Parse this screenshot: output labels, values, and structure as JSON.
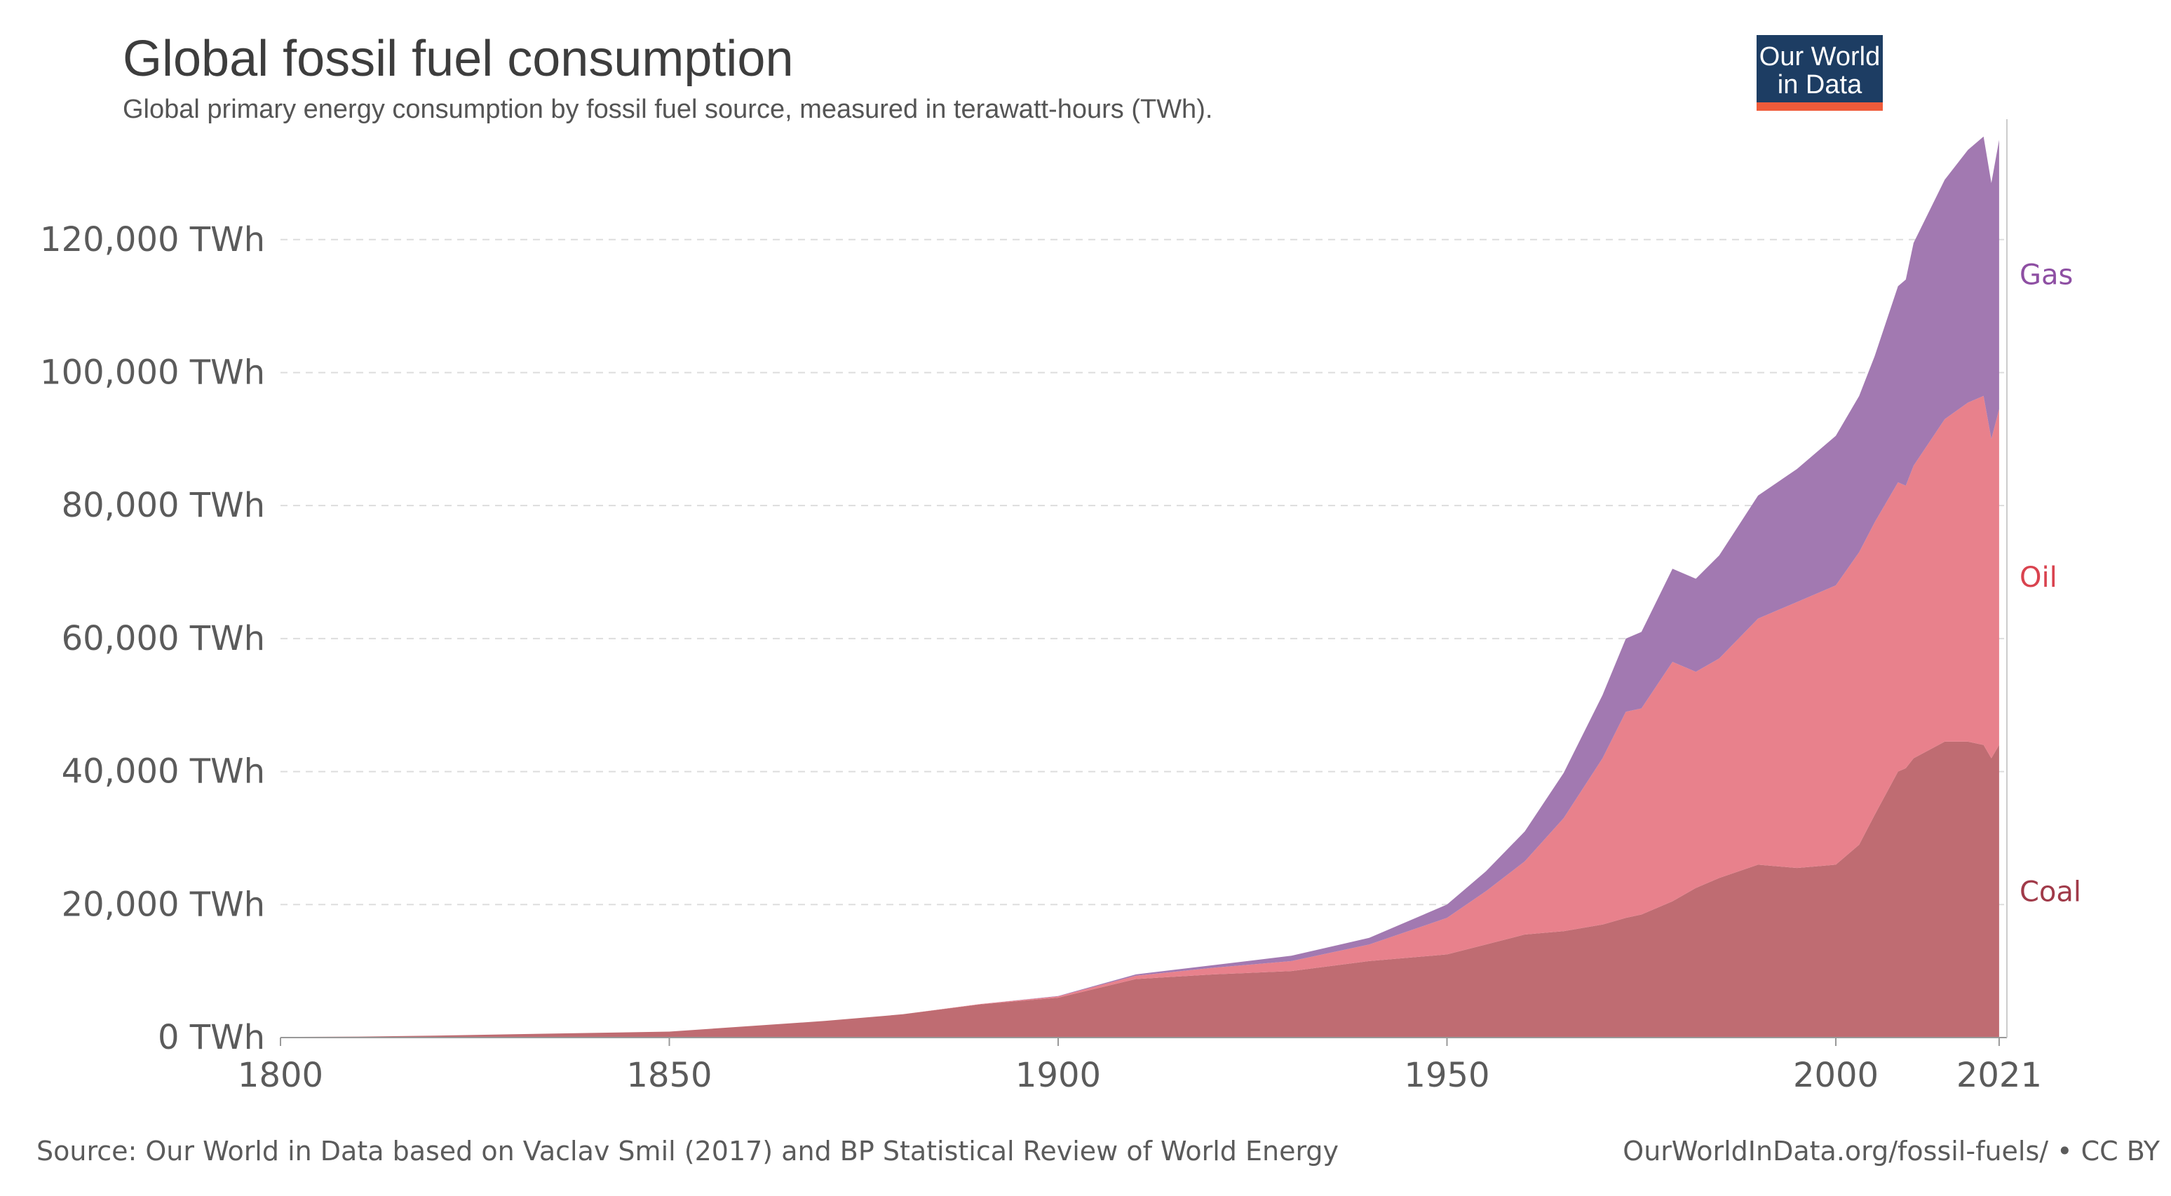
{
  "chart_data": {
    "type": "area",
    "stacked": true,
    "title": "Global fossil fuel consumption",
    "subtitle": "Global primary energy consumption by fossil fuel source, measured in terawatt-hours (TWh).",
    "xlim": [
      1800,
      2022
    ],
    "ylim": [
      0,
      136000
    ],
    "x_ticks": [
      {
        "value": 1800,
        "label": "1800"
      },
      {
        "value": 1850,
        "label": "1850"
      },
      {
        "value": 1900,
        "label": "1900"
      },
      {
        "value": 1950,
        "label": "1950"
      },
      {
        "value": 2000,
        "label": "2000"
      },
      {
        "value": 2021,
        "label": "2021"
      }
    ],
    "y_ticks": [
      {
        "value": 0,
        "label": "0 TWh"
      },
      {
        "value": 20000,
        "label": "20,000 TWh"
      },
      {
        "value": 40000,
        "label": "40,000 TWh"
      },
      {
        "value": 60000,
        "label": "60,000 TWh"
      },
      {
        "value": 80000,
        "label": "80,000 TWh"
      },
      {
        "value": 100000,
        "label": "100,000 TWh"
      },
      {
        "value": 120000,
        "label": "120,000 TWh"
      }
    ],
    "grid": true,
    "legend": "inline-right",
    "x": [
      1800,
      1810,
      1820,
      1830,
      1840,
      1850,
      1860,
      1870,
      1880,
      1890,
      1900,
      1910,
      1920,
      1930,
      1940,
      1950,
      1955,
      1960,
      1965,
      1970,
      1973,
      1975,
      1979,
      1982,
      1985,
      1990,
      1995,
      2000,
      2003,
      2005,
      2008,
      2009,
      2010,
      2014,
      2017,
      2019,
      2020,
      2021
    ],
    "series": [
      {
        "name": "Coal",
        "color": "#bf6c72",
        "label_color": "#a03a49",
        "values": [
          100,
          150,
          300,
          500,
          700,
          900,
          1700,
          2500,
          3500,
          5000,
          6000,
          8800,
          9500,
          10000,
          11500,
          12500,
          14000,
          15500,
          16000,
          17000,
          18000,
          18500,
          20500,
          22500,
          24000,
          26000,
          25500,
          26000,
          29000,
          33500,
          40000,
          40500,
          42000,
          44500,
          44500,
          44000,
          42000,
          44000
        ]
      },
      {
        "name": "Oil",
        "color": "#e8818c",
        "label_color": "#d9434f",
        "values": [
          0,
          0,
          0,
          0,
          0,
          0,
          0,
          0,
          0,
          50,
          200,
          500,
          1000,
          1500,
          2500,
          5500,
          8000,
          11000,
          17000,
          25000,
          31000,
          31000,
          36000,
          32500,
          33000,
          37000,
          40000,
          42000,
          44000,
          44000,
          43500,
          42500,
          44000,
          48500,
          51000,
          52500,
          48000,
          50500
        ]
      },
      {
        "name": "Gas",
        "color": "#a279b1",
        "label_color": "#8e4fa3",
        "values": [
          0,
          0,
          0,
          0,
          0,
          0,
          0,
          0,
          0,
          0,
          50,
          200,
          400,
          800,
          1000,
          2000,
          3000,
          4500,
          6800,
          9500,
          11000,
          11500,
          14000,
          14000,
          15500,
          18500,
          20000,
          22500,
          23500,
          25000,
          29500,
          31000,
          33500,
          36000,
          38000,
          39000,
          38500,
          40500
        ]
      }
    ],
    "source": "Source: Our World in Data based on Vaclav Smil (2017) and BP Statistical Review of World Energy",
    "url_credit": "OurWorldInData.org/fossil-fuels/ • CC BY"
  },
  "logo": {
    "line1": "Our World",
    "line2": "in Data",
    "bg_color": "#1d3d63",
    "accent_color": "#ef5b3a"
  }
}
